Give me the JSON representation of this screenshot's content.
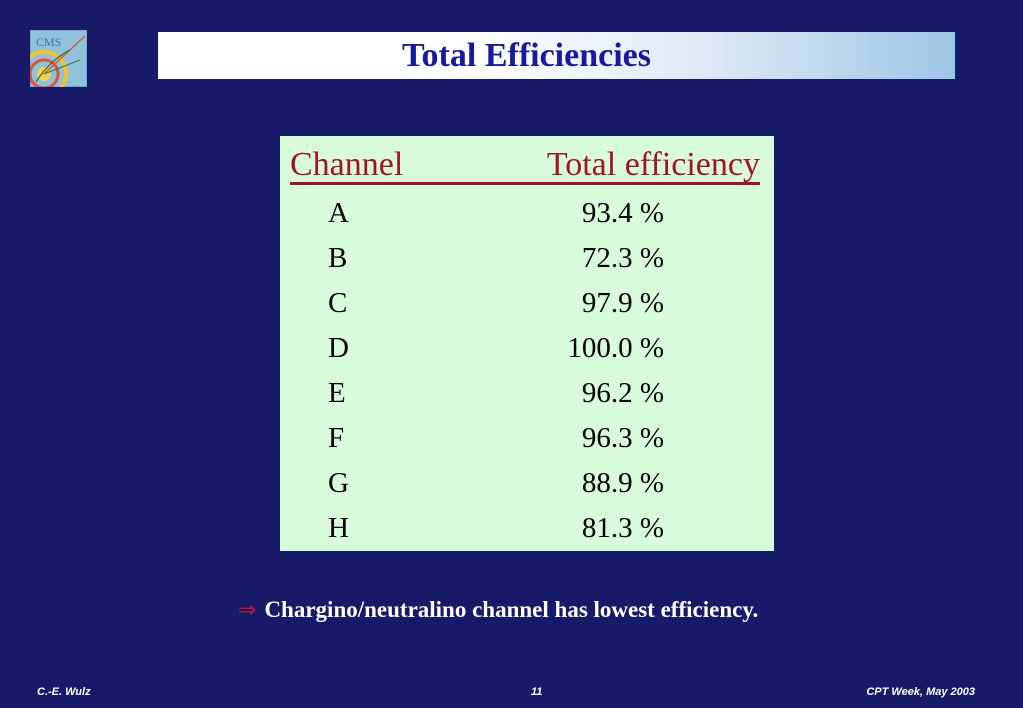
{
  "logo": {
    "text": "CMS"
  },
  "slide": {
    "title": "Total Efficiencies",
    "table": {
      "header_channel": "Channel",
      "header_efficiency": "Total efficiency",
      "rows": [
        {
          "channel": "A",
          "efficiency": "93.4 %"
        },
        {
          "channel": "B",
          "efficiency": "72.3 %"
        },
        {
          "channel": "C",
          "efficiency": "97.9 %"
        },
        {
          "channel": "D",
          "efficiency": "100.0 %"
        },
        {
          "channel": "E",
          "efficiency": "96.2 %"
        },
        {
          "channel": "F",
          "efficiency": "96.3 %"
        },
        {
          "channel": "G",
          "efficiency": "88.9 %"
        },
        {
          "channel": "H",
          "efficiency": "81.3 %"
        }
      ]
    },
    "conclusion_arrow": "⇒",
    "conclusion": "Chargino/neutralino channel has lowest efficiency."
  },
  "footer": {
    "author": "C.-E. Wulz",
    "page": "11",
    "event": "CPT Week, May 2003"
  },
  "colors": {
    "background": "#171a68",
    "title_text": "#171a9c",
    "table_background": "#d8fbd9",
    "header_red": "#a01522",
    "arrow_red": "#c8102e"
  }
}
